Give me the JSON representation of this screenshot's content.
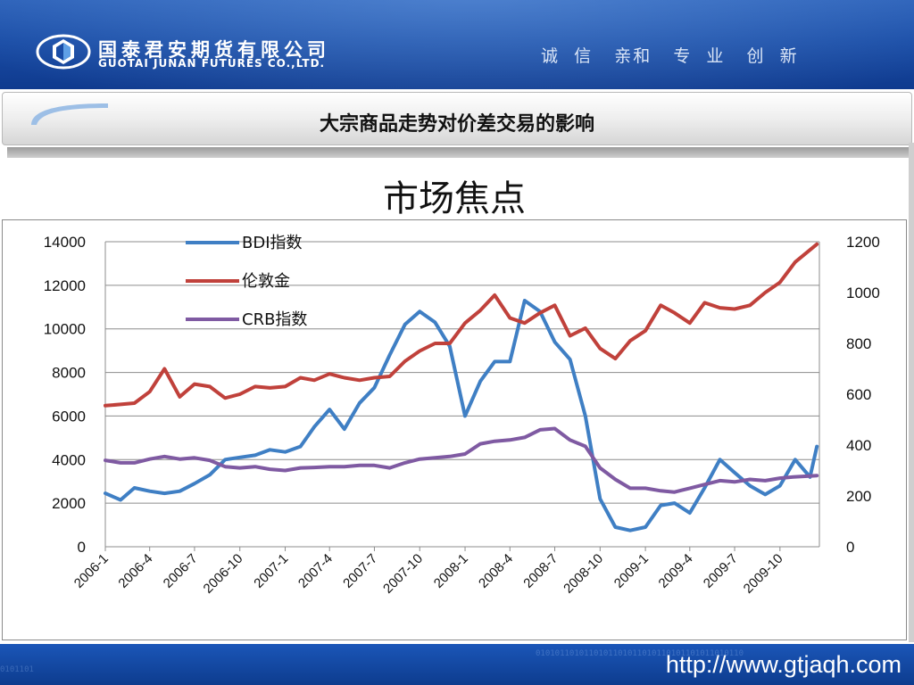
{
  "header": {
    "company_cn": "国泰君安期货有限公司",
    "company_en": "GUOTAI JUNAN FUTURES CO.,LTD.",
    "motto": "诚  信   亲和   专  业   创  新"
  },
  "slide_title": "大宗商品走势对价差交易的影响",
  "subtitle": "市场焦点",
  "footer": {
    "website": "http://www.gtjaqh.com"
  },
  "colors": {
    "bdi": "#3f7fc4",
    "gold": "#c0413b",
    "crb": "#7f5aa2",
    "header_blue": "#1a4da6"
  },
  "icons": {
    "logo": "hexagon-logo-icon"
  },
  "chart_data": {
    "type": "line",
    "title": "",
    "x_tick_labels": [
      "2006-1",
      "2006-4",
      "2006-7",
      "2006-10",
      "2007-1",
      "2007-4",
      "2007-7",
      "2007-10",
      "2008-1",
      "2008-4",
      "2008-7",
      "2008-10",
      "2009-1",
      "2009-4",
      "2009-7",
      "2009-10"
    ],
    "y_left": {
      "min": 0,
      "max": 14000,
      "ticks": [
        0,
        2000,
        4000,
        6000,
        8000,
        10000,
        12000,
        14000
      ]
    },
    "y_right": {
      "min": 0,
      "max": 1200,
      "ticks": [
        0,
        200,
        400,
        600,
        800,
        1000,
        1200
      ]
    },
    "grid": true,
    "legend": "top-left",
    "series": [
      {
        "name": "BDI指数",
        "axis": "left",
        "color": "#3f7fc4",
        "points": [
          [
            "2006-01",
            2450
          ],
          [
            "2006-02",
            2150
          ],
          [
            "2006-03",
            2700
          ],
          [
            "2006-04",
            2550
          ],
          [
            "2006-05",
            2450
          ],
          [
            "2006-06",
            2550
          ],
          [
            "2006-07",
            2900
          ],
          [
            "2006-08",
            3300
          ],
          [
            "2006-09",
            4000
          ],
          [
            "2006-10",
            4100
          ],
          [
            "2006-11",
            4200
          ],
          [
            "2006-12",
            4450
          ],
          [
            "2007-01",
            4350
          ],
          [
            "2007-02",
            4600
          ],
          [
            "2007-03",
            5500
          ],
          [
            "2007-04",
            6300
          ],
          [
            "2007-05",
            5400
          ],
          [
            "2007-06",
            6600
          ],
          [
            "2007-07",
            7300
          ],
          [
            "2007-08",
            8800
          ],
          [
            "2007-09",
            10200
          ],
          [
            "2007-10",
            10800
          ],
          [
            "2007-11",
            10300
          ],
          [
            "2007-12",
            9200
          ],
          [
            "2008-01",
            6000
          ],
          [
            "2008-02",
            7600
          ],
          [
            "2008-03",
            8500
          ],
          [
            "2008-04",
            8500
          ],
          [
            "2008-05",
            11300
          ],
          [
            "2008-06",
            10800
          ],
          [
            "2008-07",
            9400
          ],
          [
            "2008-08",
            8600
          ],
          [
            "2008-09",
            6000
          ],
          [
            "2008-10",
            2200
          ],
          [
            "2008-11",
            900
          ],
          [
            "2008-12",
            750
          ],
          [
            "2009-01",
            900
          ],
          [
            "2009-02",
            1900
          ],
          [
            "2009-03",
            2000
          ],
          [
            "2009-04",
            1550
          ],
          [
            "2009-05",
            2700
          ],
          [
            "2009-06",
            4000
          ],
          [
            "2009-07",
            3400
          ],
          [
            "2009-08",
            2800
          ],
          [
            "2009-09",
            2400
          ],
          [
            "2009-10",
            2800
          ],
          [
            "2009-11",
            4000
          ],
          [
            "2009-12",
            3200
          ],
          [
            "2009-12-15",
            4600
          ]
        ]
      },
      {
        "name": "伦敦金",
        "axis": "right",
        "color": "#c0413b",
        "points": [
          [
            "2006-01",
            555
          ],
          [
            "2006-02",
            560
          ],
          [
            "2006-03",
            565
          ],
          [
            "2006-04",
            610
          ],
          [
            "2006-05",
            700
          ],
          [
            "2006-06",
            590
          ],
          [
            "2006-07",
            640
          ],
          [
            "2006-08",
            630
          ],
          [
            "2006-09",
            585
          ],
          [
            "2006-10",
            600
          ],
          [
            "2006-11",
            630
          ],
          [
            "2006-12",
            625
          ],
          [
            "2007-01",
            630
          ],
          [
            "2007-02",
            665
          ],
          [
            "2007-03",
            655
          ],
          [
            "2007-04",
            680
          ],
          [
            "2007-05",
            665
          ],
          [
            "2007-06",
            655
          ],
          [
            "2007-07",
            665
          ],
          [
            "2007-08",
            670
          ],
          [
            "2007-09",
            730
          ],
          [
            "2007-10",
            770
          ],
          [
            "2007-11",
            800
          ],
          [
            "2007-12",
            800
          ],
          [
            "2008-01",
            880
          ],
          [
            "2008-02",
            930
          ],
          [
            "2008-03",
            990
          ],
          [
            "2008-04",
            900
          ],
          [
            "2008-05",
            880
          ],
          [
            "2008-06",
            920
          ],
          [
            "2008-07",
            950
          ],
          [
            "2008-08",
            830
          ],
          [
            "2008-09",
            860
          ],
          [
            "2008-10",
            780
          ],
          [
            "2008-11",
            740
          ],
          [
            "2008-12",
            810
          ],
          [
            "2009-01",
            850
          ],
          [
            "2009-02",
            950
          ],
          [
            "2009-03",
            920
          ],
          [
            "2009-04",
            880
          ],
          [
            "2009-05",
            960
          ],
          [
            "2009-06",
            940
          ],
          [
            "2009-07",
            935
          ],
          [
            "2009-08",
            950
          ],
          [
            "2009-09",
            1000
          ],
          [
            "2009-10",
            1040
          ],
          [
            "2009-11",
            1120
          ],
          [
            "2009-12-15",
            1190
          ]
        ]
      },
      {
        "name": "CRB指数",
        "axis": "right",
        "color": "#7f5aa2",
        "points": [
          [
            "2006-01",
            340
          ],
          [
            "2006-02",
            330
          ],
          [
            "2006-03",
            330
          ],
          [
            "2006-04",
            345
          ],
          [
            "2006-05",
            355
          ],
          [
            "2006-06",
            345
          ],
          [
            "2006-07",
            350
          ],
          [
            "2006-08",
            340
          ],
          [
            "2006-09",
            315
          ],
          [
            "2006-10",
            310
          ],
          [
            "2006-11",
            315
          ],
          [
            "2006-12",
            305
          ],
          [
            "2007-01",
            300
          ],
          [
            "2007-02",
            310
          ],
          [
            "2007-03",
            312
          ],
          [
            "2007-04",
            315
          ],
          [
            "2007-05",
            315
          ],
          [
            "2007-06",
            320
          ],
          [
            "2007-07",
            320
          ],
          [
            "2007-08",
            310
          ],
          [
            "2007-09",
            330
          ],
          [
            "2007-10",
            345
          ],
          [
            "2007-11",
            350
          ],
          [
            "2007-12",
            355
          ],
          [
            "2008-01",
            365
          ],
          [
            "2008-02",
            405
          ],
          [
            "2008-03",
            415
          ],
          [
            "2008-04",
            420
          ],
          [
            "2008-05",
            430
          ],
          [
            "2008-06",
            460
          ],
          [
            "2008-07",
            465
          ],
          [
            "2008-08",
            420
          ],
          [
            "2008-09",
            395
          ],
          [
            "2008-10",
            310
          ],
          [
            "2008-11",
            265
          ],
          [
            "2008-12",
            230
          ],
          [
            "2009-01",
            230
          ],
          [
            "2009-02",
            220
          ],
          [
            "2009-03",
            215
          ],
          [
            "2009-04",
            230
          ],
          [
            "2009-05",
            245
          ],
          [
            "2009-06",
            260
          ],
          [
            "2009-07",
            255
          ],
          [
            "2009-08",
            265
          ],
          [
            "2009-09",
            260
          ],
          [
            "2009-10",
            270
          ],
          [
            "2009-11",
            275
          ],
          [
            "2009-12-15",
            280
          ]
        ]
      }
    ]
  }
}
